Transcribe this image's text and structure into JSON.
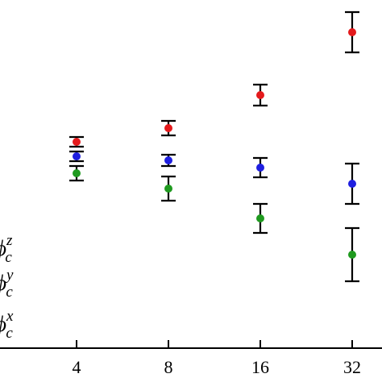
{
  "chart_data": {
    "type": "scatter",
    "x_scale": "log2",
    "x_ticks": [
      4,
      8,
      16,
      32
    ],
    "tick_labels": [
      "4",
      "8",
      "16",
      "32"
    ],
    "ylim": [
      0,
      474
    ],
    "legend_position": "bottom-left",
    "legend": [
      {
        "base": "ϕ",
        "sub": "c",
        "sup": "z"
      },
      {
        "base": "ϕ",
        "sub": "c",
        "sup": "y"
      },
      {
        "base": "ϕ",
        "sub": "c",
        "sup": "x"
      }
    ],
    "series": [
      {
        "color": "#e41a1c",
        "points": [
          {
            "x": 4,
            "y": 298,
            "err": 6
          },
          {
            "x": 8,
            "y": 315,
            "err": 9
          },
          {
            "x": 16,
            "y": 356,
            "err": 13
          },
          {
            "x": 32,
            "y": 434,
            "err": 25
          }
        ]
      },
      {
        "color": "#1f1fe0",
        "points": [
          {
            "x": 4,
            "y": 280,
            "err": 6
          },
          {
            "x": 8,
            "y": 275,
            "err": 7
          },
          {
            "x": 16,
            "y": 266,
            "err": 12
          },
          {
            "x": 32,
            "y": 246,
            "err": 25
          }
        ]
      },
      {
        "color": "#1f9a1f",
        "points": [
          {
            "x": 4,
            "y": 259,
            "err": 9
          },
          {
            "x": 8,
            "y": 240,
            "err": 15
          },
          {
            "x": 16,
            "y": 203,
            "err": 18
          },
          {
            "x": 32,
            "y": 158,
            "err": 33
          }
        ]
      }
    ]
  }
}
